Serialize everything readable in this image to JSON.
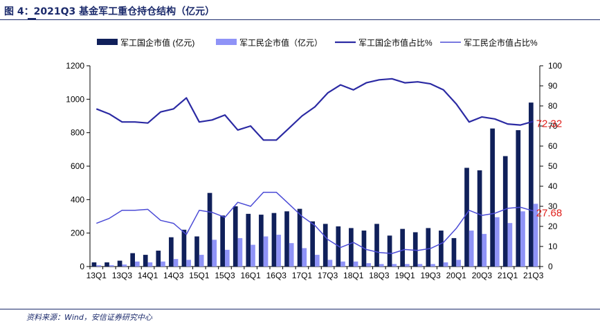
{
  "header": {
    "title": "图 4：2021Q3 基金军工重仓持仓结构（亿元）"
  },
  "footer": {
    "source": "资料来源：Wind，安信证券研究中心"
  },
  "colors": {
    "bar_state": "#10205a",
    "bar_private": "#8f93f7",
    "line_state": "#2b2aa3",
    "line_private": "#4b4bd6",
    "label_red": "#e0201b",
    "title_blue": "#1b2a6b"
  },
  "chart_data": {
    "type": "bar",
    "title": "",
    "xlabel": "",
    "ylabel": "",
    "ylim": [
      0,
      1200
    ],
    "y2lim": [
      0,
      100
    ],
    "yticks": [
      "0",
      "200",
      "400",
      "600",
      "800",
      "1000",
      "1200"
    ],
    "y2ticks": [
      "0",
      "10",
      "20",
      "30",
      "40",
      "50",
      "60",
      "70",
      "80",
      "90",
      "100"
    ],
    "legend_position": "top",
    "categories": [
      "13Q1",
      "13Q2",
      "13Q3",
      "13Q4",
      "14Q1",
      "14Q2",
      "14Q3",
      "14Q4",
      "15Q1",
      "15Q2",
      "15Q3",
      "15Q4",
      "16Q1",
      "16Q2",
      "16Q3",
      "16Q4",
      "17Q1",
      "17Q2",
      "17Q3",
      "17Q4",
      "18Q1",
      "18Q2",
      "18Q3",
      "18Q4",
      "19Q1",
      "19Q2",
      "19Q3",
      "19Q4",
      "20Q1",
      "20Q2",
      "20Q3",
      "20Q4",
      "21Q1",
      "21Q2",
      "21Q3"
    ],
    "xtick_labels": [
      "13Q1",
      "13Q3",
      "14Q1",
      "14Q3",
      "15Q1",
      "15Q3",
      "16Q1",
      "16Q3",
      "17Q1",
      "17Q3",
      "18Q1",
      "18Q3",
      "19Q1",
      "19Q3",
      "20Q1",
      "20Q3",
      "21Q1",
      "21Q3"
    ],
    "series": [
      {
        "name": "军工国企市值 (亿元)",
        "kind": "bar",
        "axis": "left",
        "values": [
          25,
          25,
          35,
          80,
          70,
          95,
          175,
          220,
          180,
          440,
          305,
          360,
          315,
          310,
          320,
          330,
          345,
          270,
          255,
          240,
          230,
          215,
          255,
          185,
          225,
          205,
          230,
          215,
          170,
          590,
          575,
          825,
          660,
          815,
          980
        ]
      },
      {
        "name": "军工民企市值（亿元）",
        "kind": "bar",
        "axis": "left",
        "values": [
          8,
          8,
          12,
          30,
          25,
          30,
          45,
          40,
          70,
          160,
          100,
          170,
          130,
          180,
          190,
          140,
          110,
          70,
          40,
          30,
          30,
          20,
          15,
          15,
          15,
          15,
          15,
          25,
          40,
          215,
          195,
          295,
          260,
          330,
          375
        ]
      },
      {
        "name": "军工国企市值占比%",
        "kind": "line",
        "axis": "right",
        "values": [
          78.5,
          76,
          72,
          72,
          71.5,
          77,
          78.5,
          84,
          72,
          73,
          75.5,
          68,
          70,
          63,
          63,
          69,
          75,
          79.5,
          86.5,
          90.5,
          88,
          91.5,
          93,
          93.5,
          91.5,
          92,
          91,
          88,
          81,
          72,
          74.5,
          73.5,
          71,
          70.5,
          72.32
        ]
      },
      {
        "name": "军工民企市值占比%",
        "kind": "line",
        "axis": "right",
        "values": [
          21.5,
          24,
          28,
          28,
          28.5,
          23,
          21.5,
          16,
          28,
          27,
          24.5,
          32,
          30,
          37,
          37,
          31,
          25,
          20.5,
          13.5,
          9.5,
          12,
          8.5,
          7,
          6.5,
          8.5,
          8,
          9,
          12,
          19,
          28,
          25.5,
          26.5,
          29,
          29.5,
          27.68
        ]
      }
    ],
    "annotations": [
      {
        "text": "72.32",
        "series": "军工国企市值占比%",
        "category": "21Q3"
      },
      {
        "text": "27.68",
        "series": "军工民企市值占比%",
        "category": "21Q3"
      }
    ]
  }
}
